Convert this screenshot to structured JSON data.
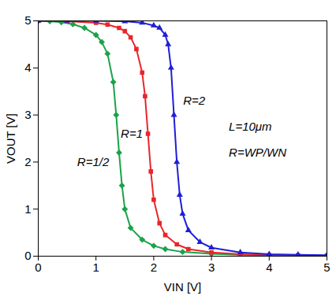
{
  "chart_data": {
    "type": "line",
    "x_label": "VIN [V]",
    "y_label": "VOUT [V]",
    "xlim": [
      0,
      5
    ],
    "ylim": [
      0,
      5
    ],
    "xticks": [
      0,
      1,
      2,
      3,
      4,
      5
    ],
    "yticks": [
      0,
      1,
      2,
      3,
      4,
      5
    ],
    "grid": false,
    "series": [
      {
        "name": "R=1/2",
        "color": "#1aa34a",
        "marker": "diamond",
        "line_style": "solid",
        "label_at": [
          0.95,
          2.0
        ],
        "x": [
          0,
          0.2,
          0.4,
          0.6,
          0.8,
          1.0,
          1.1,
          1.2,
          1.3,
          1.35,
          1.4,
          1.45,
          1.5,
          1.6,
          1.8,
          2.0,
          2.2,
          2.5,
          3.0,
          3.5,
          4.0,
          4.5,
          5.0
        ],
        "values": [
          5.0,
          4.99,
          4.97,
          4.93,
          4.85,
          4.7,
          4.55,
          4.3,
          3.7,
          3.0,
          2.2,
          1.5,
          1.0,
          0.6,
          0.35,
          0.22,
          0.15,
          0.09,
          0.05,
          0.03,
          0.02,
          0.015,
          0.01
        ]
      },
      {
        "name": "R=1",
        "color": "#e8262b",
        "marker": "square",
        "line_style": "solid",
        "label_at": [
          1.62,
          2.6
        ],
        "x": [
          0,
          0.5,
          1.0,
          1.2,
          1.4,
          1.5,
          1.6,
          1.7,
          1.8,
          1.85,
          1.9,
          1.95,
          2.0,
          2.1,
          2.2,
          2.4,
          2.6,
          3.0,
          3.5,
          4.0,
          4.5,
          5.0
        ],
        "values": [
          5.0,
          4.99,
          4.96,
          4.92,
          4.85,
          4.78,
          4.65,
          4.4,
          3.9,
          3.4,
          2.6,
          1.8,
          1.2,
          0.7,
          0.45,
          0.25,
          0.15,
          0.08,
          0.04,
          0.02,
          0.015,
          0.01
        ]
      },
      {
        "name": "R=2",
        "color": "#1f1fd6",
        "marker": "triangle",
        "line_style": "solid",
        "label_at": [
          2.7,
          3.3
        ],
        "x": [
          0,
          0.5,
          1.0,
          1.5,
          1.8,
          2.0,
          2.1,
          2.2,
          2.25,
          2.3,
          2.35,
          2.4,
          2.45,
          2.5,
          2.6,
          2.8,
          3.0,
          3.5,
          4.0,
          4.5,
          5.0
        ],
        "values": [
          5.0,
          5.0,
          5.0,
          4.99,
          4.96,
          4.9,
          4.85,
          4.7,
          4.5,
          4.0,
          3.0,
          2.0,
          1.3,
          0.9,
          0.55,
          0.3,
          0.18,
          0.08,
          0.04,
          0.03,
          0.02
        ]
      }
    ],
    "annotations": [
      {
        "text": "L=10μm",
        "x": 3.3,
        "y": 2.75
      },
      {
        "text": "R=WP/WN",
        "x": 3.3,
        "y": 2.2
      }
    ]
  }
}
